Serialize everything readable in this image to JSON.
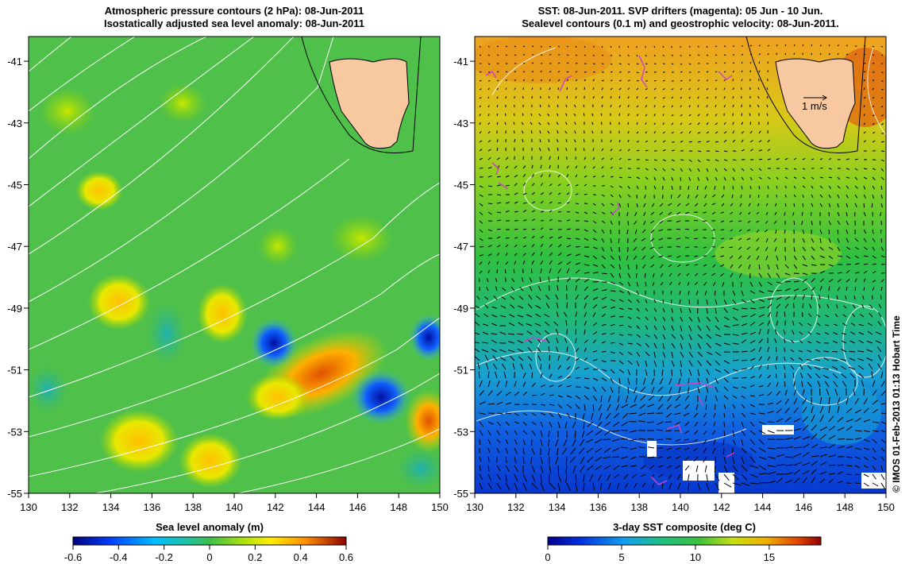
{
  "left_panel": {
    "title_line1": "Atmospheric pressure contours (2 hPa): 08-Jun-2011",
    "title_line2": "Isostatically adjusted sea level anomaly: 08-Jun-2011",
    "colorbar": {
      "label": "Sea level anomaly (m)",
      "ticks": [
        "-0.6",
        "-0.4",
        "-0.2",
        "0",
        "0.2",
        "0.4",
        "0.6"
      ]
    }
  },
  "right_panel": {
    "title_line1": "SST: 08-Jun-2011. SVP drifters (magenta): 05 Jun - 10 Jun.",
    "title_line2": "Sealevel contours (0.1 m) and geostrophic velocity: 08-Jun-2011.",
    "scale_arrow_label": "1 m/s",
    "colorbar": {
      "label": "3-day SST composite (deg C)",
      "ticks": [
        "0",
        "5",
        "10",
        "15"
      ]
    }
  },
  "axes": {
    "lat_labels": [
      "-41",
      "-43",
      "-45",
      "-47",
      "-49",
      "-51",
      "-53",
      "-55"
    ],
    "lon_labels": [
      "130",
      "132",
      "134",
      "136",
      "138",
      "140",
      "142",
      "144",
      "146",
      "148",
      "150"
    ],
    "lat_values": [
      -41,
      -43,
      -45,
      -47,
      -49,
      -51,
      -53,
      -55
    ],
    "lon_values": [
      130,
      132,
      134,
      136,
      138,
      140,
      142,
      144,
      146,
      148,
      150
    ],
    "lat_range": [
      -55,
      -40.2
    ],
    "lon_range": [
      130,
      150
    ]
  },
  "copyright": "© IMOS 01-Feb-2013 01:13 Hobart Time",
  "colors": {
    "land": "#f8c9a0",
    "contour": "#ffffff",
    "drifter": "#cc44cc",
    "sla_base": "#4fc04a",
    "sst_warm": "#f0a020"
  }
}
